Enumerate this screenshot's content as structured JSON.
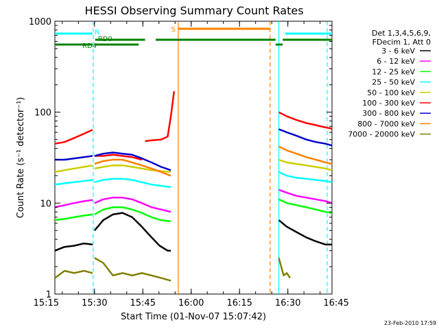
{
  "chart_data": {
    "type": "line",
    "title": "HESSI Observing Summary Count Rates",
    "xlabel": "Start Time (01-Nov-07 15:07:42)",
    "ylabel": "Count Rate (s⁻¹ detector⁻¹)",
    "y_scale": "log",
    "ylim": [
      1,
      1000
    ],
    "xlim_minutes": [
      15.0,
      101.0
    ],
    "x_ticks": [
      {
        "minute": 12.3,
        "label": "15:15"
      },
      {
        "minute": 27.3,
        "label": "15:30"
      },
      {
        "minute": 42.3,
        "label": "15:45"
      },
      {
        "minute": 57.3,
        "label": "16:00"
      },
      {
        "minute": 72.3,
        "label": "16:15"
      },
      {
        "minute": 87.3,
        "label": "16:30"
      },
      {
        "minute": 102.3,
        "label": "16:45"
      }
    ],
    "y_ticks": [
      {
        "value": 1,
        "label": "1"
      },
      {
        "value": 10,
        "label": "10"
      },
      {
        "value": 100,
        "label": "100"
      },
      {
        "value": 1000,
        "label": "1000"
      }
    ],
    "legend_header": [
      "Det 1,3,4,5,6,9,",
      "FDecim 1, Att 0"
    ],
    "legend_position": "right",
    "timestamp": "23-Feb-2010 17:59",
    "series": [
      {
        "name": "3 - 6 keV",
        "color": "#000000",
        "segments": [
          {
            "x": [
              15.0,
              18,
              21,
              24,
              26.7
            ],
            "y": [
              3.0,
              3.3,
              3.4,
              3.6,
              3.5
            ]
          },
          {
            "x": [
              27.3,
              30,
              33,
              36,
              39,
              42,
              45,
              47.5,
              50,
              51
            ],
            "y": [
              5.0,
              6.5,
              7.5,
              7.8,
              7.0,
              5.5,
              4.2,
              3.4,
              3.0,
              3.0
            ]
          },
          {
            "x": [
              84.5,
              87,
              90,
              93,
              96,
              99,
              101
            ],
            "y": [
              6.5,
              5.5,
              4.8,
              4.2,
              3.8,
              3.5,
              3.5
            ]
          }
        ]
      },
      {
        "name": "6 - 12 keV",
        "color": "#ff00ff",
        "segments": [
          {
            "x": [
              15.0,
              18,
              21,
              24,
              26.7
            ],
            "y": [
              9.0,
              9.5,
              10.0,
              10.5,
              10.8
            ]
          },
          {
            "x": [
              27.3,
              30,
              33,
              36,
              39,
              42,
              45,
              48,
              51
            ],
            "y": [
              10.0,
              11.0,
              11.5,
              11.5,
              11.0,
              10.0,
              9.0,
              8.5,
              8.0
            ]
          },
          {
            "x": [
              84.5,
              87,
              90,
              93,
              96,
              99,
              101
            ],
            "y": [
              14.0,
              13.0,
              12.0,
              11.5,
              11.0,
              10.5,
              10.0
            ]
          }
        ]
      },
      {
        "name": "12 - 25 keV",
        "color": "#00ff00",
        "segments": [
          {
            "x": [
              15.0,
              18,
              21,
              24,
              26.7
            ],
            "y": [
              6.5,
              6.7,
              7.0,
              7.3,
              7.5
            ]
          },
          {
            "x": [
              27.3,
              30,
              33,
              36,
              39,
              42,
              45,
              48,
              51
            ],
            "y": [
              7.5,
              8.5,
              9.0,
              9.0,
              8.5,
              7.8,
              7.0,
              6.5,
              6.3
            ]
          },
          {
            "x": [
              84.5,
              87,
              90,
              93,
              96,
              99,
              101
            ],
            "y": [
              11.0,
              10.0,
              9.5,
              9.0,
              8.5,
              8.0,
              7.8
            ]
          }
        ]
      },
      {
        "name": "25 - 50 keV",
        "color": "#00ffff",
        "segments": [
          {
            "x": [
              15.0,
              18,
              21,
              24,
              26.7
            ],
            "y": [
              16.0,
              16.5,
              17.0,
              17.5,
              18.0
            ]
          },
          {
            "x": [
              27.3,
              30,
              33,
              36,
              39,
              42,
              45,
              48,
              51
            ],
            "y": [
              17.0,
              18.0,
              18.5,
              18.5,
              18.0,
              17.0,
              16.0,
              15.5,
              15.0
            ]
          },
          {
            "x": [
              84.5,
              87,
              90,
              93,
              96,
              99,
              101
            ],
            "y": [
              22.0,
              20.0,
              19.0,
              18.5,
              18.0,
              17.5,
              17.0
            ]
          }
        ]
      },
      {
        "name": "50 - 100 keV",
        "color": "#cccc00",
        "segments": [
          {
            "x": [
              15.0,
              18,
              21,
              24,
              26.7
            ],
            "y": [
              22.0,
              23.0,
              24.0,
              25.0,
              26.0
            ]
          },
          {
            "x": [
              27.3,
              30,
              33,
              36,
              39,
              42,
              45,
              48,
              51
            ],
            "y": [
              24.0,
              25.0,
              26.0,
              26.0,
              25.0,
              24.0,
              23.0,
              22.5,
              22.0
            ]
          },
          {
            "x": [
              84.5,
              87,
              90,
              93,
              96,
              99,
              101
            ],
            "y": [
              30.0,
              28.0,
              27.0,
              26.0,
              25.0,
              24.0,
              23.0
            ]
          }
        ]
      },
      {
        "name": "100 - 300 keV",
        "color": "#ff0000",
        "segments": [
          {
            "x": [
              15.0,
              18,
              21,
              24,
              26.7
            ],
            "y": [
              45.0,
              47.0,
              52.0,
              58.0,
              64.0
            ]
          },
          {
            "x": [
              27.3,
              30,
              33,
              36,
              39,
              42
            ],
            "y": [
              33.0,
              33.0,
              34.0,
              33.0,
              32.0,
              30.0
            ]
          },
          {
            "x": [
              43.0,
              45,
              48,
              50,
              51,
              52.0
            ],
            "y": [
              48.0,
              49.0,
              50.0,
              54.0,
              90.0,
              170.0
            ]
          },
          {
            "x": [
              84.5,
              87,
              90,
              93,
              96,
              99,
              101
            ],
            "y": [
              100.0,
              90.0,
              82.0,
              76.0,
              72.0,
              68.0,
              66.0
            ]
          }
        ]
      },
      {
        "name": "300 - 800 keV",
        "color": "#0000cc",
        "segments": [
          {
            "x": [
              15.0,
              18,
              21,
              24,
              26.7
            ],
            "y": [
              30.0,
              30.0,
              31.0,
              32.0,
              33.0
            ]
          },
          {
            "x": [
              27.3,
              30,
              33,
              36,
              39,
              42,
              45,
              48,
              51
            ],
            "y": [
              33.0,
              35.0,
              36.0,
              35.0,
              34.0,
              31.0,
              28.0,
              25.0,
              23.0
            ]
          },
          {
            "x": [
              84.5,
              87,
              90,
              93,
              96,
              99,
              101
            ],
            "y": [
              65.0,
              60.0,
              55.0,
              50.0,
              47.0,
              45.0,
              43.0
            ]
          }
        ]
      },
      {
        "name": "800 - 7000 keV",
        "color": "#ff8000",
        "segments": [
          {
            "x": [
              27.3,
              30,
              33,
              36,
              39,
              42,
              45,
              48,
              51
            ],
            "y": [
              27.0,
              29.0,
              30.0,
              30.0,
              28.0,
              26.0,
              24.0,
              22.0,
              20.0
            ]
          },
          {
            "x": [
              84.5,
              87,
              90,
              93,
              96,
              99,
              101
            ],
            "y": [
              42.0,
              38.0,
              35.0,
              32.0,
              30.0,
              28.0,
              27.0
            ]
          }
        ]
      },
      {
        "name": "7000 - 20000 keV",
        "color": "#808000",
        "segments": [
          {
            "x": [
              15.0,
              18,
              21,
              24,
              26.7
            ],
            "y": [
              1.5,
              1.8,
              1.7,
              1.8,
              1.7
            ]
          },
          {
            "x": [
              27.3,
              30,
              33,
              36,
              39,
              42,
              45,
              48,
              51
            ],
            "y": [
              2.5,
              2.2,
              1.6,
              1.7,
              1.6,
              1.7,
              1.6,
              1.5,
              1.4
            ]
          },
          {
            "x": [
              84.5,
              86,
              87,
              88
            ],
            "y": [
              2.5,
              1.6,
              1.7,
              1.5
            ]
          }
        ]
      }
    ],
    "state_bars": [
      {
        "label": "N",
        "color": "#00ffff",
        "segments": [
          [
            15.0,
            26.7
          ],
          [
            86.5,
            101.0
          ]
        ],
        "level": 0
      },
      {
        "label": "RD0",
        "color": "#008000",
        "segments": [
          [
            27.5,
            43.0
          ],
          [
            46.3,
            83.5
          ],
          [
            85.7,
            101.0
          ]
        ],
        "level": 1
      },
      {
        "label": "RD4",
        "color": "#008000",
        "segments": [
          [
            15.0,
            26.7
          ],
          [
            27.3,
            41.0
          ],
          [
            83.5,
            85.7
          ]
        ],
        "level": 2
      },
      {
        "label": "S",
        "color": "#ff8000",
        "segments": [
          [
            53.3,
            81.8
          ]
        ],
        "level": -1
      }
    ],
    "vertical_lines": [
      {
        "minute": 26.9,
        "color": "#00ffff",
        "style": "dashed"
      },
      {
        "minute": 53.3,
        "color": "#ff8000",
        "style": "solid"
      },
      {
        "minute": 81.8,
        "color": "#ff8000",
        "style": "dashed"
      },
      {
        "minute": 84.5,
        "color": "#00ffff",
        "style": "solid"
      },
      {
        "minute": 99.5,
        "color": "#00ffff",
        "style": "dashed"
      }
    ]
  }
}
